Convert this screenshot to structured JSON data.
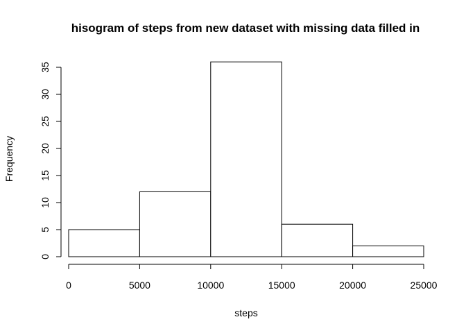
{
  "chart_data": {
    "type": "bar",
    "title": "hisogram of steps from new dataset with missing data filled in",
    "xlabel": "steps",
    "ylabel": "Frequency",
    "bins": [
      {
        "from": 0,
        "to": 5000,
        "count": 5
      },
      {
        "from": 5000,
        "to": 10000,
        "count": 12
      },
      {
        "from": 10000,
        "to": 15000,
        "count": 36
      },
      {
        "from": 15000,
        "to": 20000,
        "count": 6
      },
      {
        "from": 20000,
        "to": 25000,
        "count": 2
      }
    ],
    "xlim": [
      0,
      25000
    ],
    "ylim": [
      0,
      35
    ],
    "xticks": [
      0,
      5000,
      10000,
      15000,
      20000,
      25000
    ],
    "yticks": [
      0,
      5,
      10,
      15,
      20,
      25,
      30,
      35
    ],
    "grid": false,
    "bar_fill": "#ffffff",
    "bar_stroke": "#000000"
  }
}
